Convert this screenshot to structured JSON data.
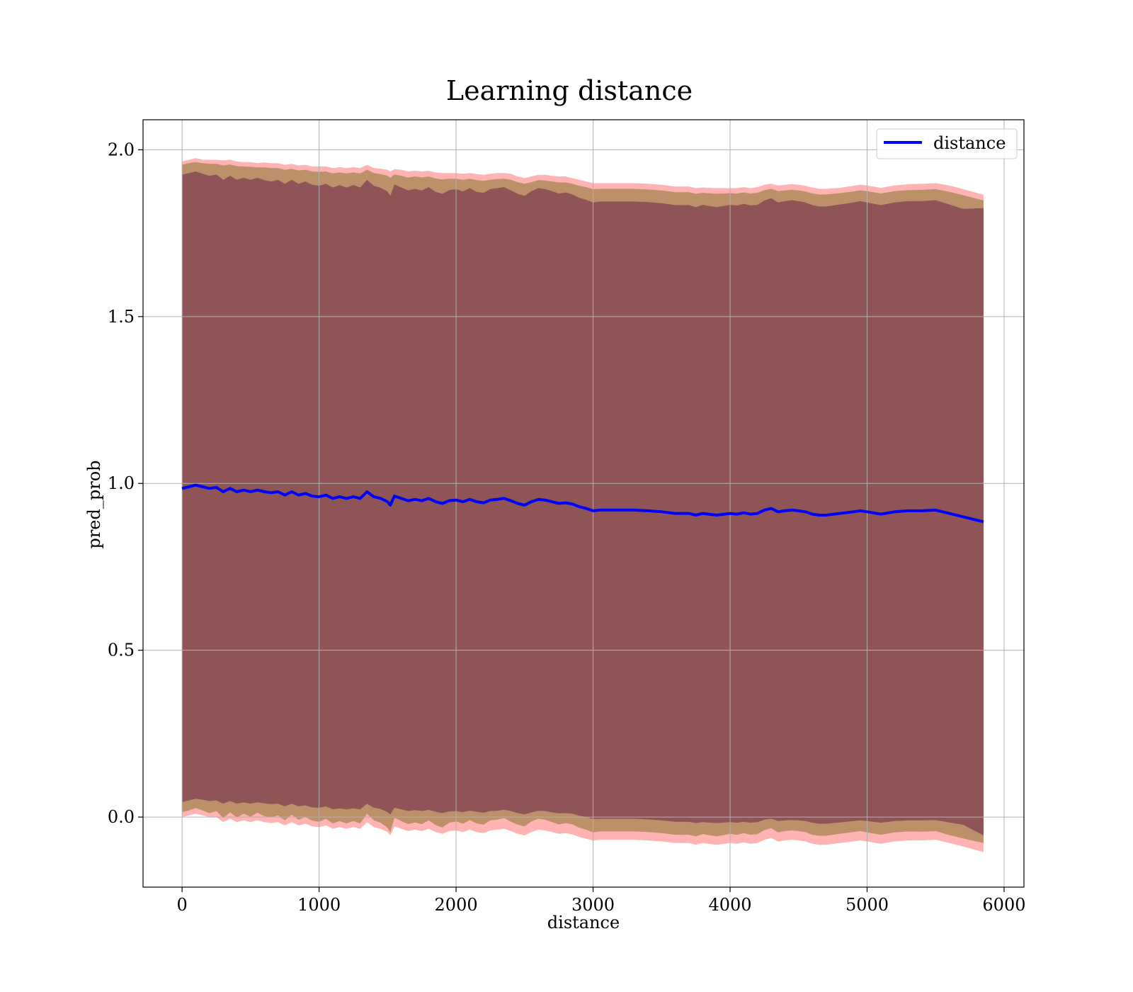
{
  "chart_data": {
    "type": "line",
    "title": "Learning distance",
    "xlabel": "distance",
    "ylabel": "pred_prob",
    "xlim": [
      -285,
      6145
    ],
    "ylim": [
      -0.21,
      2.09
    ],
    "xticks": [
      0,
      1000,
      2000,
      3000,
      4000,
      5000,
      6000
    ],
    "yticks": [
      0.0,
      0.5,
      1.0,
      1.5,
      2.0
    ],
    "xtick_labels": [
      "0",
      "1000",
      "2000",
      "3000",
      "4000",
      "5000",
      "6000"
    ],
    "ytick_labels": [
      "0.0",
      "0.5",
      "1.0",
      "1.5",
      "2.0"
    ],
    "grid": true,
    "legend": {
      "position": "top-right",
      "entries": [
        "distance"
      ]
    },
    "colors": {
      "line": "#0000ff",
      "outer_band": "#ff9999",
      "middle_band": "#b08a5a",
      "inner_band": "#7a3a4f",
      "grid": "#b0b0b0"
    },
    "series": [
      {
        "name": "distance",
        "x": [
          0,
          50,
          100,
          150,
          200,
          250,
          300,
          350,
          400,
          450,
          500,
          550,
          600,
          650,
          700,
          750,
          800,
          850,
          900,
          950,
          1000,
          1050,
          1100,
          1150,
          1200,
          1250,
          1300,
          1350,
          1400,
          1450,
          1500,
          1520,
          1550,
          1600,
          1650,
          1700,
          1750,
          1800,
          1850,
          1900,
          1950,
          2000,
          2050,
          2100,
          2150,
          2200,
          2250,
          2300,
          2350,
          2400,
          2450,
          2500,
          2550,
          2600,
          2650,
          2700,
          2750,
          2800,
          2850,
          2900,
          2950,
          3000,
          3050,
          3100,
          3150,
          3200,
          3300,
          3400,
          3500,
          3600,
          3700,
          3750,
          3800,
          3900,
          4000,
          4050,
          4100,
          4150,
          4200,
          4250,
          4300,
          4350,
          4400,
          4450,
          4500,
          4550,
          4600,
          4650,
          4700,
          4800,
          4900,
          4950,
          5000,
          5100,
          5200,
          5300,
          5400,
          5500,
          5600,
          5700,
          5850
        ],
        "values": [
          0.985,
          0.99,
          0.995,
          0.99,
          0.985,
          0.988,
          0.975,
          0.985,
          0.975,
          0.98,
          0.975,
          0.98,
          0.975,
          0.972,
          0.975,
          0.965,
          0.975,
          0.965,
          0.97,
          0.962,
          0.96,
          0.965,
          0.955,
          0.96,
          0.955,
          0.96,
          0.955,
          0.975,
          0.96,
          0.955,
          0.945,
          0.935,
          0.962,
          0.955,
          0.948,
          0.952,
          0.948,
          0.955,
          0.945,
          0.94,
          0.948,
          0.95,
          0.945,
          0.952,
          0.945,
          0.942,
          0.95,
          0.952,
          0.955,
          0.948,
          0.94,
          0.935,
          0.945,
          0.952,
          0.95,
          0.945,
          0.94,
          0.942,
          0.938,
          0.93,
          0.925,
          0.918,
          0.92,
          0.92,
          0.92,
          0.92,
          0.92,
          0.918,
          0.915,
          0.91,
          0.91,
          0.905,
          0.91,
          0.905,
          0.91,
          0.908,
          0.912,
          0.908,
          0.91,
          0.92,
          0.925,
          0.915,
          0.918,
          0.92,
          0.918,
          0.915,
          0.908,
          0.905,
          0.905,
          0.91,
          0.915,
          0.918,
          0.915,
          0.908,
          0.915,
          0.918,
          0.918,
          0.92,
          0.91,
          0.9,
          0.885
        ]
      }
    ],
    "bands": [
      {
        "name": "outer",
        "upper": [
          1.965,
          1.97,
          1.975,
          1.97,
          1.97,
          1.97,
          1.968,
          1.97,
          1.965,
          1.963,
          1.963,
          1.96,
          1.962,
          1.96,
          1.96,
          1.955,
          1.958,
          1.953,
          1.955,
          1.95,
          1.95,
          1.95,
          1.945,
          1.948,
          1.945,
          1.948,
          1.945,
          1.955,
          1.945,
          1.943,
          1.94,
          1.935,
          1.942,
          1.94,
          1.935,
          1.937,
          1.935,
          1.937,
          1.932,
          1.93,
          1.93,
          1.93,
          1.928,
          1.93,
          1.927,
          1.925,
          1.928,
          1.93,
          1.93,
          1.928,
          1.92,
          1.915,
          1.92,
          1.925,
          1.925,
          1.922,
          1.92,
          1.92,
          1.915,
          1.91,
          1.905,
          1.9,
          1.9,
          1.9,
          1.9,
          1.9,
          1.9,
          1.898,
          1.895,
          1.89,
          1.89,
          1.885,
          1.887,
          1.885,
          1.885,
          1.885,
          1.888,
          1.885,
          1.888,
          1.895,
          1.898,
          1.893,
          1.895,
          1.897,
          1.895,
          1.892,
          1.887,
          1.883,
          1.883,
          1.886,
          1.892,
          1.895,
          1.893,
          1.886,
          1.893,
          1.897,
          1.898,
          1.9,
          1.893,
          1.882,
          1.865
        ],
        "lower": [
          0.0,
          0.005,
          0.01,
          0.005,
          0.0,
          0.0,
          -0.015,
          -0.005,
          -0.015,
          -0.01,
          -0.015,
          -0.01,
          -0.015,
          -0.018,
          -0.015,
          -0.025,
          -0.015,
          -0.025,
          -0.02,
          -0.028,
          -0.03,
          -0.025,
          -0.035,
          -0.03,
          -0.035,
          -0.03,
          -0.035,
          -0.015,
          -0.03,
          -0.035,
          -0.045,
          -0.055,
          -0.028,
          -0.035,
          -0.042,
          -0.038,
          -0.042,
          -0.035,
          -0.045,
          -0.05,
          -0.042,
          -0.04,
          -0.045,
          -0.038,
          -0.045,
          -0.048,
          -0.04,
          -0.038,
          -0.035,
          -0.042,
          -0.05,
          -0.055,
          -0.045,
          -0.038,
          -0.04,
          -0.045,
          -0.05,
          -0.048,
          -0.052,
          -0.06,
          -0.065,
          -0.07,
          -0.068,
          -0.068,
          -0.068,
          -0.068,
          -0.068,
          -0.07,
          -0.073,
          -0.078,
          -0.078,
          -0.083,
          -0.078,
          -0.083,
          -0.078,
          -0.08,
          -0.076,
          -0.08,
          -0.078,
          -0.068,
          -0.063,
          -0.073,
          -0.07,
          -0.068,
          -0.07,
          -0.073,
          -0.08,
          -0.083,
          -0.083,
          -0.078,
          -0.073,
          -0.07,
          -0.073,
          -0.08,
          -0.073,
          -0.07,
          -0.07,
          -0.068,
          -0.078,
          -0.088,
          -0.105
        ]
      },
      {
        "name": "middle",
        "upper": [
          1.955,
          1.96,
          1.963,
          1.96,
          1.958,
          1.958,
          1.953,
          1.956,
          1.951,
          1.95,
          1.949,
          1.947,
          1.947,
          1.945,
          1.945,
          1.94,
          1.943,
          1.938,
          1.94,
          1.935,
          1.934,
          1.935,
          1.929,
          1.932,
          1.929,
          1.932,
          1.929,
          1.94,
          1.93,
          1.927,
          1.922,
          1.916,
          1.926,
          1.922,
          1.917,
          1.92,
          1.917,
          1.92,
          1.914,
          1.911,
          1.913,
          1.913,
          1.91,
          1.913,
          1.909,
          1.907,
          1.91,
          1.912,
          1.913,
          1.91,
          1.903,
          1.898,
          1.903,
          1.909,
          1.908,
          1.905,
          1.902,
          1.902,
          1.898,
          1.892,
          1.888,
          1.882,
          1.883,
          1.883,
          1.883,
          1.883,
          1.883,
          1.881,
          1.878,
          1.873,
          1.873,
          1.868,
          1.871,
          1.868,
          1.87,
          1.869,
          1.872,
          1.869,
          1.871,
          1.879,
          1.883,
          1.876,
          1.878,
          1.88,
          1.878,
          1.875,
          1.869,
          1.866,
          1.866,
          1.87,
          1.875,
          1.878,
          1.876,
          1.869,
          1.876,
          1.879,
          1.88,
          1.882,
          1.874,
          1.864,
          1.848
        ],
        "lower": [
          0.015,
          0.02,
          0.027,
          0.02,
          0.012,
          0.018,
          -0.003,
          0.014,
          -0.001,
          0.01,
          0.001,
          0.013,
          0.003,
          -0.001,
          0.005,
          -0.01,
          0.007,
          -0.008,
          0.0,
          -0.011,
          -0.014,
          -0.005,
          -0.019,
          -0.012,
          -0.019,
          -0.012,
          -0.019,
          0.01,
          -0.01,
          -0.017,
          -0.032,
          -0.046,
          -0.002,
          -0.012,
          -0.021,
          -0.016,
          -0.021,
          -0.01,
          -0.024,
          -0.031,
          -0.017,
          -0.013,
          -0.02,
          -0.009,
          -0.019,
          -0.023,
          -0.01,
          -0.008,
          -0.003,
          -0.014,
          -0.023,
          -0.028,
          -0.013,
          -0.005,
          -0.008,
          -0.015,
          -0.022,
          -0.018,
          -0.022,
          -0.032,
          -0.038,
          -0.046,
          -0.043,
          -0.043,
          -0.043,
          -0.043,
          -0.043,
          -0.045,
          -0.048,
          -0.053,
          -0.053,
          -0.058,
          -0.051,
          -0.058,
          -0.05,
          -0.053,
          -0.048,
          -0.053,
          -0.051,
          -0.039,
          -0.033,
          -0.046,
          -0.042,
          -0.04,
          -0.042,
          -0.045,
          -0.053,
          -0.056,
          -0.056,
          -0.05,
          -0.045,
          -0.042,
          -0.046,
          -0.053,
          -0.046,
          -0.043,
          -0.044,
          -0.042,
          -0.054,
          -0.064,
          -0.078
        ]
      },
      {
        "name": "inner",
        "upper": [
          1.925,
          1.93,
          1.935,
          1.928,
          1.922,
          1.926,
          1.91,
          1.922,
          1.91,
          1.916,
          1.91,
          1.916,
          1.909,
          1.905,
          1.91,
          1.898,
          1.91,
          1.898,
          1.905,
          1.895,
          1.892,
          1.898,
          1.887,
          1.894,
          1.887,
          1.894,
          1.887,
          1.91,
          1.892,
          1.886,
          1.875,
          1.862,
          1.896,
          1.887,
          1.878,
          1.883,
          1.878,
          1.888,
          1.874,
          1.868,
          1.879,
          1.882,
          1.875,
          1.885,
          1.874,
          1.871,
          1.882,
          1.885,
          1.888,
          1.878,
          1.868,
          1.862,
          1.876,
          1.885,
          1.882,
          1.876,
          1.869,
          1.872,
          1.866,
          1.856,
          1.85,
          1.842,
          1.845,
          1.845,
          1.845,
          1.845,
          1.845,
          1.843,
          1.84,
          1.834,
          1.834,
          1.828,
          1.835,
          1.828,
          1.835,
          1.833,
          1.838,
          1.833,
          1.835,
          1.848,
          1.855,
          1.842,
          1.846,
          1.849,
          1.846,
          1.842,
          1.834,
          1.83,
          1.83,
          1.836,
          1.842,
          1.846,
          1.842,
          1.834,
          1.842,
          1.846,
          1.846,
          1.849,
          1.836,
          1.823,
          1.825
        ],
        "lower": [
          0.045,
          0.05,
          0.055,
          0.052,
          0.048,
          0.05,
          0.04,
          0.048,
          0.04,
          0.044,
          0.04,
          0.044,
          0.041,
          0.039,
          0.04,
          0.032,
          0.04,
          0.032,
          0.035,
          0.029,
          0.028,
          0.032,
          0.023,
          0.026,
          0.023,
          0.026,
          0.023,
          0.04,
          0.028,
          0.024,
          0.015,
          0.008,
          0.028,
          0.023,
          0.018,
          0.021,
          0.018,
          0.022,
          0.016,
          0.012,
          0.017,
          0.018,
          0.015,
          0.019,
          0.016,
          0.013,
          0.018,
          0.019,
          0.022,
          0.018,
          0.012,
          0.008,
          0.014,
          0.019,
          0.018,
          0.014,
          0.011,
          0.012,
          0.01,
          0.004,
          0.0,
          -0.006,
          -0.005,
          -0.005,
          -0.005,
          -0.005,
          -0.005,
          -0.007,
          -0.01,
          -0.014,
          -0.014,
          -0.018,
          -0.015,
          -0.018,
          -0.015,
          -0.017,
          -0.014,
          -0.017,
          -0.015,
          -0.008,
          -0.005,
          -0.012,
          -0.01,
          -0.009,
          -0.01,
          -0.012,
          -0.017,
          -0.02,
          -0.02,
          -0.016,
          -0.012,
          -0.01,
          -0.012,
          -0.017,
          -0.012,
          -0.01,
          -0.01,
          -0.009,
          -0.016,
          -0.023,
          -0.055
        ]
      }
    ]
  }
}
